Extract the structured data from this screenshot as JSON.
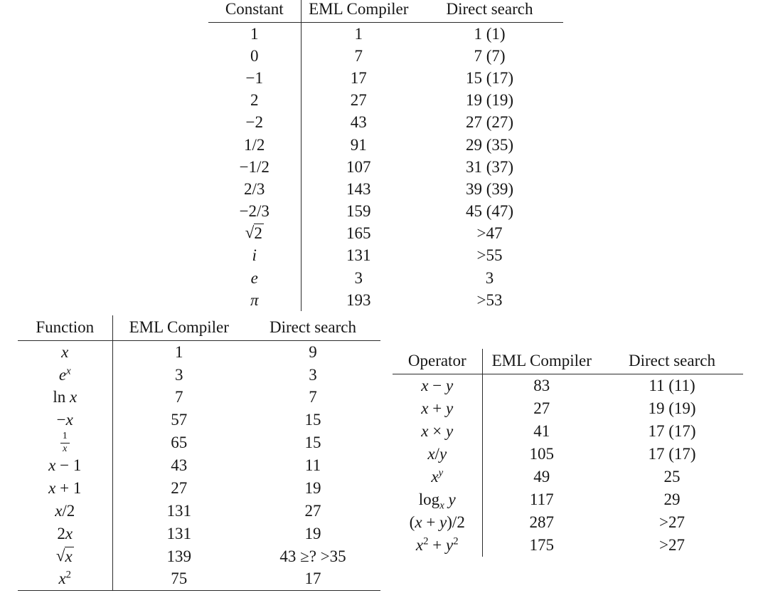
{
  "page": {
    "background": "#ffffff",
    "text_color": "#161616",
    "rule_color": "#2b2b2b"
  },
  "tables": {
    "constant": {
      "headers": [
        "Constant",
        "EML Compiler",
        "Direct search"
      ],
      "rows": [
        [
          "1",
          "1",
          "1 (1)"
        ],
        [
          "0",
          "7",
          "7 (7)"
        ],
        [
          "−1",
          "17",
          "15 (17)"
        ],
        [
          "2",
          "27",
          "19 (19)"
        ],
        [
          "−2",
          "43",
          "27 (27)"
        ],
        [
          "1/2",
          "91",
          "29 (35)"
        ],
        [
          "−1/2",
          "107",
          "31 (37)"
        ],
        [
          "2/3",
          "143",
          "39 (39)"
        ],
        [
          "−2/3",
          "159",
          "45 (47)"
        ],
        [
          "\\sqrt{2}",
          "165",
          ">47"
        ],
        [
          "*i*",
          "131",
          ">55"
        ],
        [
          "*e*",
          "3",
          "3"
        ],
        [
          "*π*",
          "193",
          ">53"
        ]
      ]
    },
    "function": {
      "headers": [
        "Function",
        "EML Compiler",
        "Direct search"
      ],
      "rows": [
        [
          "*x*",
          "1",
          "9"
        ],
        [
          "*e*^{*x*}",
          "3",
          "3"
        ],
        [
          "ln *x*",
          "7",
          "7"
        ],
        [
          "−*x*",
          "57",
          "15"
        ],
        [
          "\\frac{1}{*x*}",
          "65",
          "15"
        ],
        [
          "*x* − 1",
          "43",
          "11"
        ],
        [
          "*x* + 1",
          "27",
          "19"
        ],
        [
          "*x*/2",
          "131",
          "27"
        ],
        [
          "2*x*",
          "131",
          "19"
        ],
        [
          "\\sqrt{*x*}",
          "139",
          "43 ≥? >35"
        ],
        [
          "*x*^{2}",
          "75",
          "17"
        ]
      ]
    },
    "operator": {
      "headers": [
        "Operator",
        "EML Compiler",
        "Direct search"
      ],
      "rows": [
        [
          "*x* − *y*",
          "83",
          "11 (11)"
        ],
        [
          "*x* + *y*",
          "27",
          "19 (19)"
        ],
        [
          "*x* × *y*",
          "41",
          "17 (17)"
        ],
        [
          "*x*/*y*",
          "105",
          "17 (17)"
        ],
        [
          "*x*^{*y*}",
          "49",
          "25"
        ],
        [
          "log_{*x*} *y*",
          "117",
          "29"
        ],
        [
          "(*x* + *y*)/2",
          "287",
          ">27"
        ],
        [
          "*x*^{2} + *y*^{2}",
          "175",
          ">27"
        ]
      ]
    }
  }
}
